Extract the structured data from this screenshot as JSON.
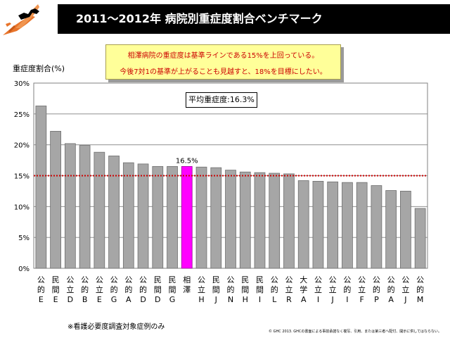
{
  "slide": {
    "title": "2011～2012年 病院別重症度割合ベンチマーク",
    "note_line1": "相澤病院の重症度は基準ラインである15%を上回っている。",
    "note_line2": "今後7対1の基準が上がることも見越すと、18%を目標にしたい。",
    "footnote": "※看護必要度調査対象症例のみ",
    "copyright": "© GHC 2013. GHCの書面による事前承諾なく複写、引用、または第三者へ配付、開示に供してはならない。"
  },
  "chart_data": {
    "type": "bar",
    "ylabel": "重症度割合(%)",
    "ylim": [
      0,
      30
    ],
    "yticks": [
      0,
      5,
      10,
      15,
      20,
      25,
      30
    ],
    "ytick_labels": [
      "0%",
      "5%",
      "10%",
      "15%",
      "20%",
      "25%",
      "30%"
    ],
    "grid": true,
    "reference_line": {
      "value": 15,
      "color": "#cc0000",
      "style": "dotted"
    },
    "average_label": "平均重症度:16.3%",
    "highlight": {
      "index": 10,
      "color": "#ff00ff",
      "label": "16.5%"
    },
    "bar_color": "#a6a6a6",
    "categories": [
      [
        "公",
        "的",
        "E"
      ],
      [
        "民",
        "間",
        "E"
      ],
      [
        "公",
        "立",
        "D"
      ],
      [
        "公",
        "的",
        "B"
      ],
      [
        "公",
        "立",
        "E"
      ],
      [
        "公",
        "的",
        "G"
      ],
      [
        "公",
        "的",
        "A"
      ],
      [
        "公",
        "的",
        "D"
      ],
      [
        "民",
        "間",
        "D"
      ],
      [
        "民",
        "間",
        "G"
      ],
      [
        "相",
        "澤",
        ""
      ],
      [
        "公",
        "立",
        "H"
      ],
      [
        "民",
        "間",
        "J"
      ],
      [
        "公",
        "的",
        "N"
      ],
      [
        "民",
        "間",
        "H"
      ],
      [
        "民",
        "間",
        "I"
      ],
      [
        "公",
        "的",
        "L"
      ],
      [
        "公",
        "立",
        "R"
      ],
      [
        "大",
        "学",
        "A"
      ],
      [
        "公",
        "立",
        "I"
      ],
      [
        "公",
        "立",
        "J"
      ],
      [
        "公",
        "的",
        "I"
      ],
      [
        "公",
        "立",
        "F"
      ],
      [
        "公",
        "的",
        "P"
      ],
      [
        "公",
        "的",
        "A"
      ],
      [
        "公",
        "立",
        "J"
      ],
      [
        "公",
        "的",
        "M"
      ]
    ],
    "values": [
      26.3,
      22.2,
      20.2,
      19.9,
      18.8,
      18.2,
      17.1,
      16.9,
      16.5,
      16.5,
      16.5,
      16.4,
      16.3,
      15.9,
      15.6,
      15.5,
      15.4,
      15.3,
      14.2,
      14.1,
      14.0,
      13.9,
      13.9,
      13.4,
      12.6,
      12.5,
      9.7
    ]
  }
}
